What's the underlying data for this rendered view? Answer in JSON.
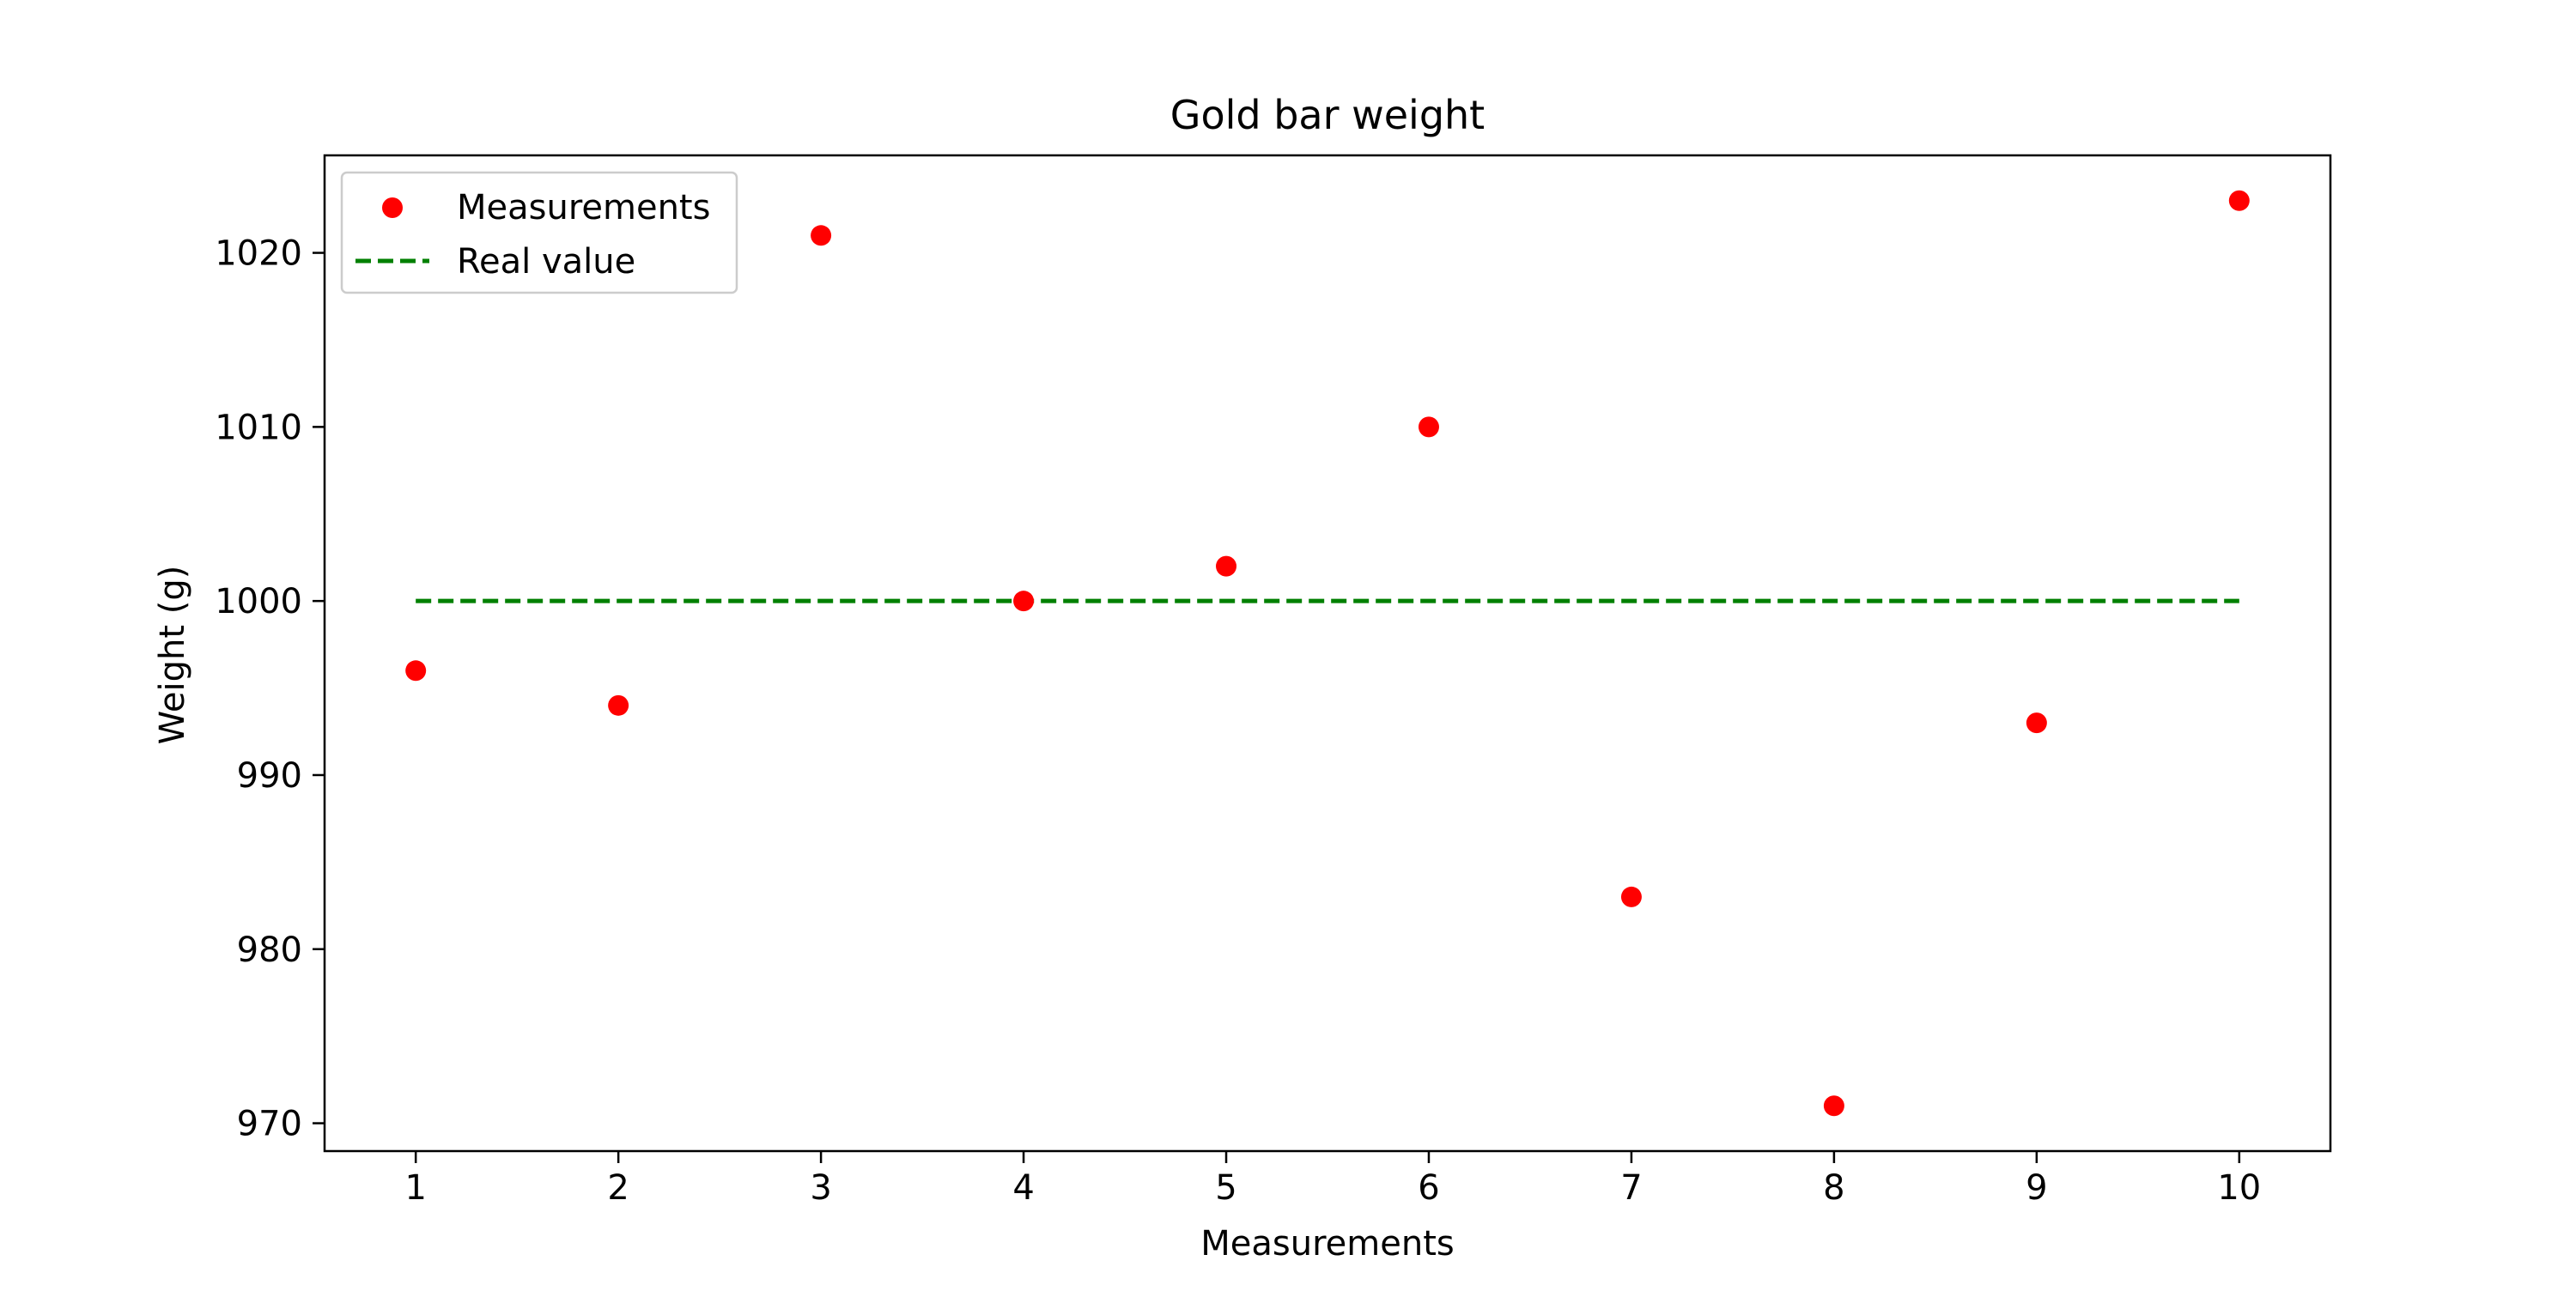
{
  "chart_data": {
    "type": "scatter",
    "title": "Gold bar weight",
    "xlabel": "Measurements",
    "ylabel": "Weight (g)",
    "x": [
      1,
      2,
      3,
      4,
      5,
      6,
      7,
      8,
      9,
      10
    ],
    "xticks": [
      "1",
      "2",
      "3",
      "4",
      "5",
      "6",
      "7",
      "8",
      "9",
      "10"
    ],
    "yticks": [
      "970",
      "980",
      "990",
      "1000",
      "1010",
      "1020"
    ],
    "xlim": [
      0.55,
      10.45
    ],
    "ylim": [
      968.4,
      1025.6
    ],
    "grid": false,
    "legend_position": "upper-left",
    "series": [
      {
        "name": "Measurements",
        "kind": "scatter",
        "color": "#ff0000",
        "x": [
          1,
          2,
          3,
          4,
          5,
          6,
          7,
          8,
          9,
          10
        ],
        "y": [
          996,
          994,
          1021,
          1000,
          1002,
          1010,
          983,
          971,
          993,
          1023
        ]
      },
      {
        "name": "Real value",
        "kind": "line",
        "style": "dashed",
        "color": "#008000",
        "x": [
          1,
          10
        ],
        "y": [
          1000,
          1000
        ]
      }
    ]
  }
}
